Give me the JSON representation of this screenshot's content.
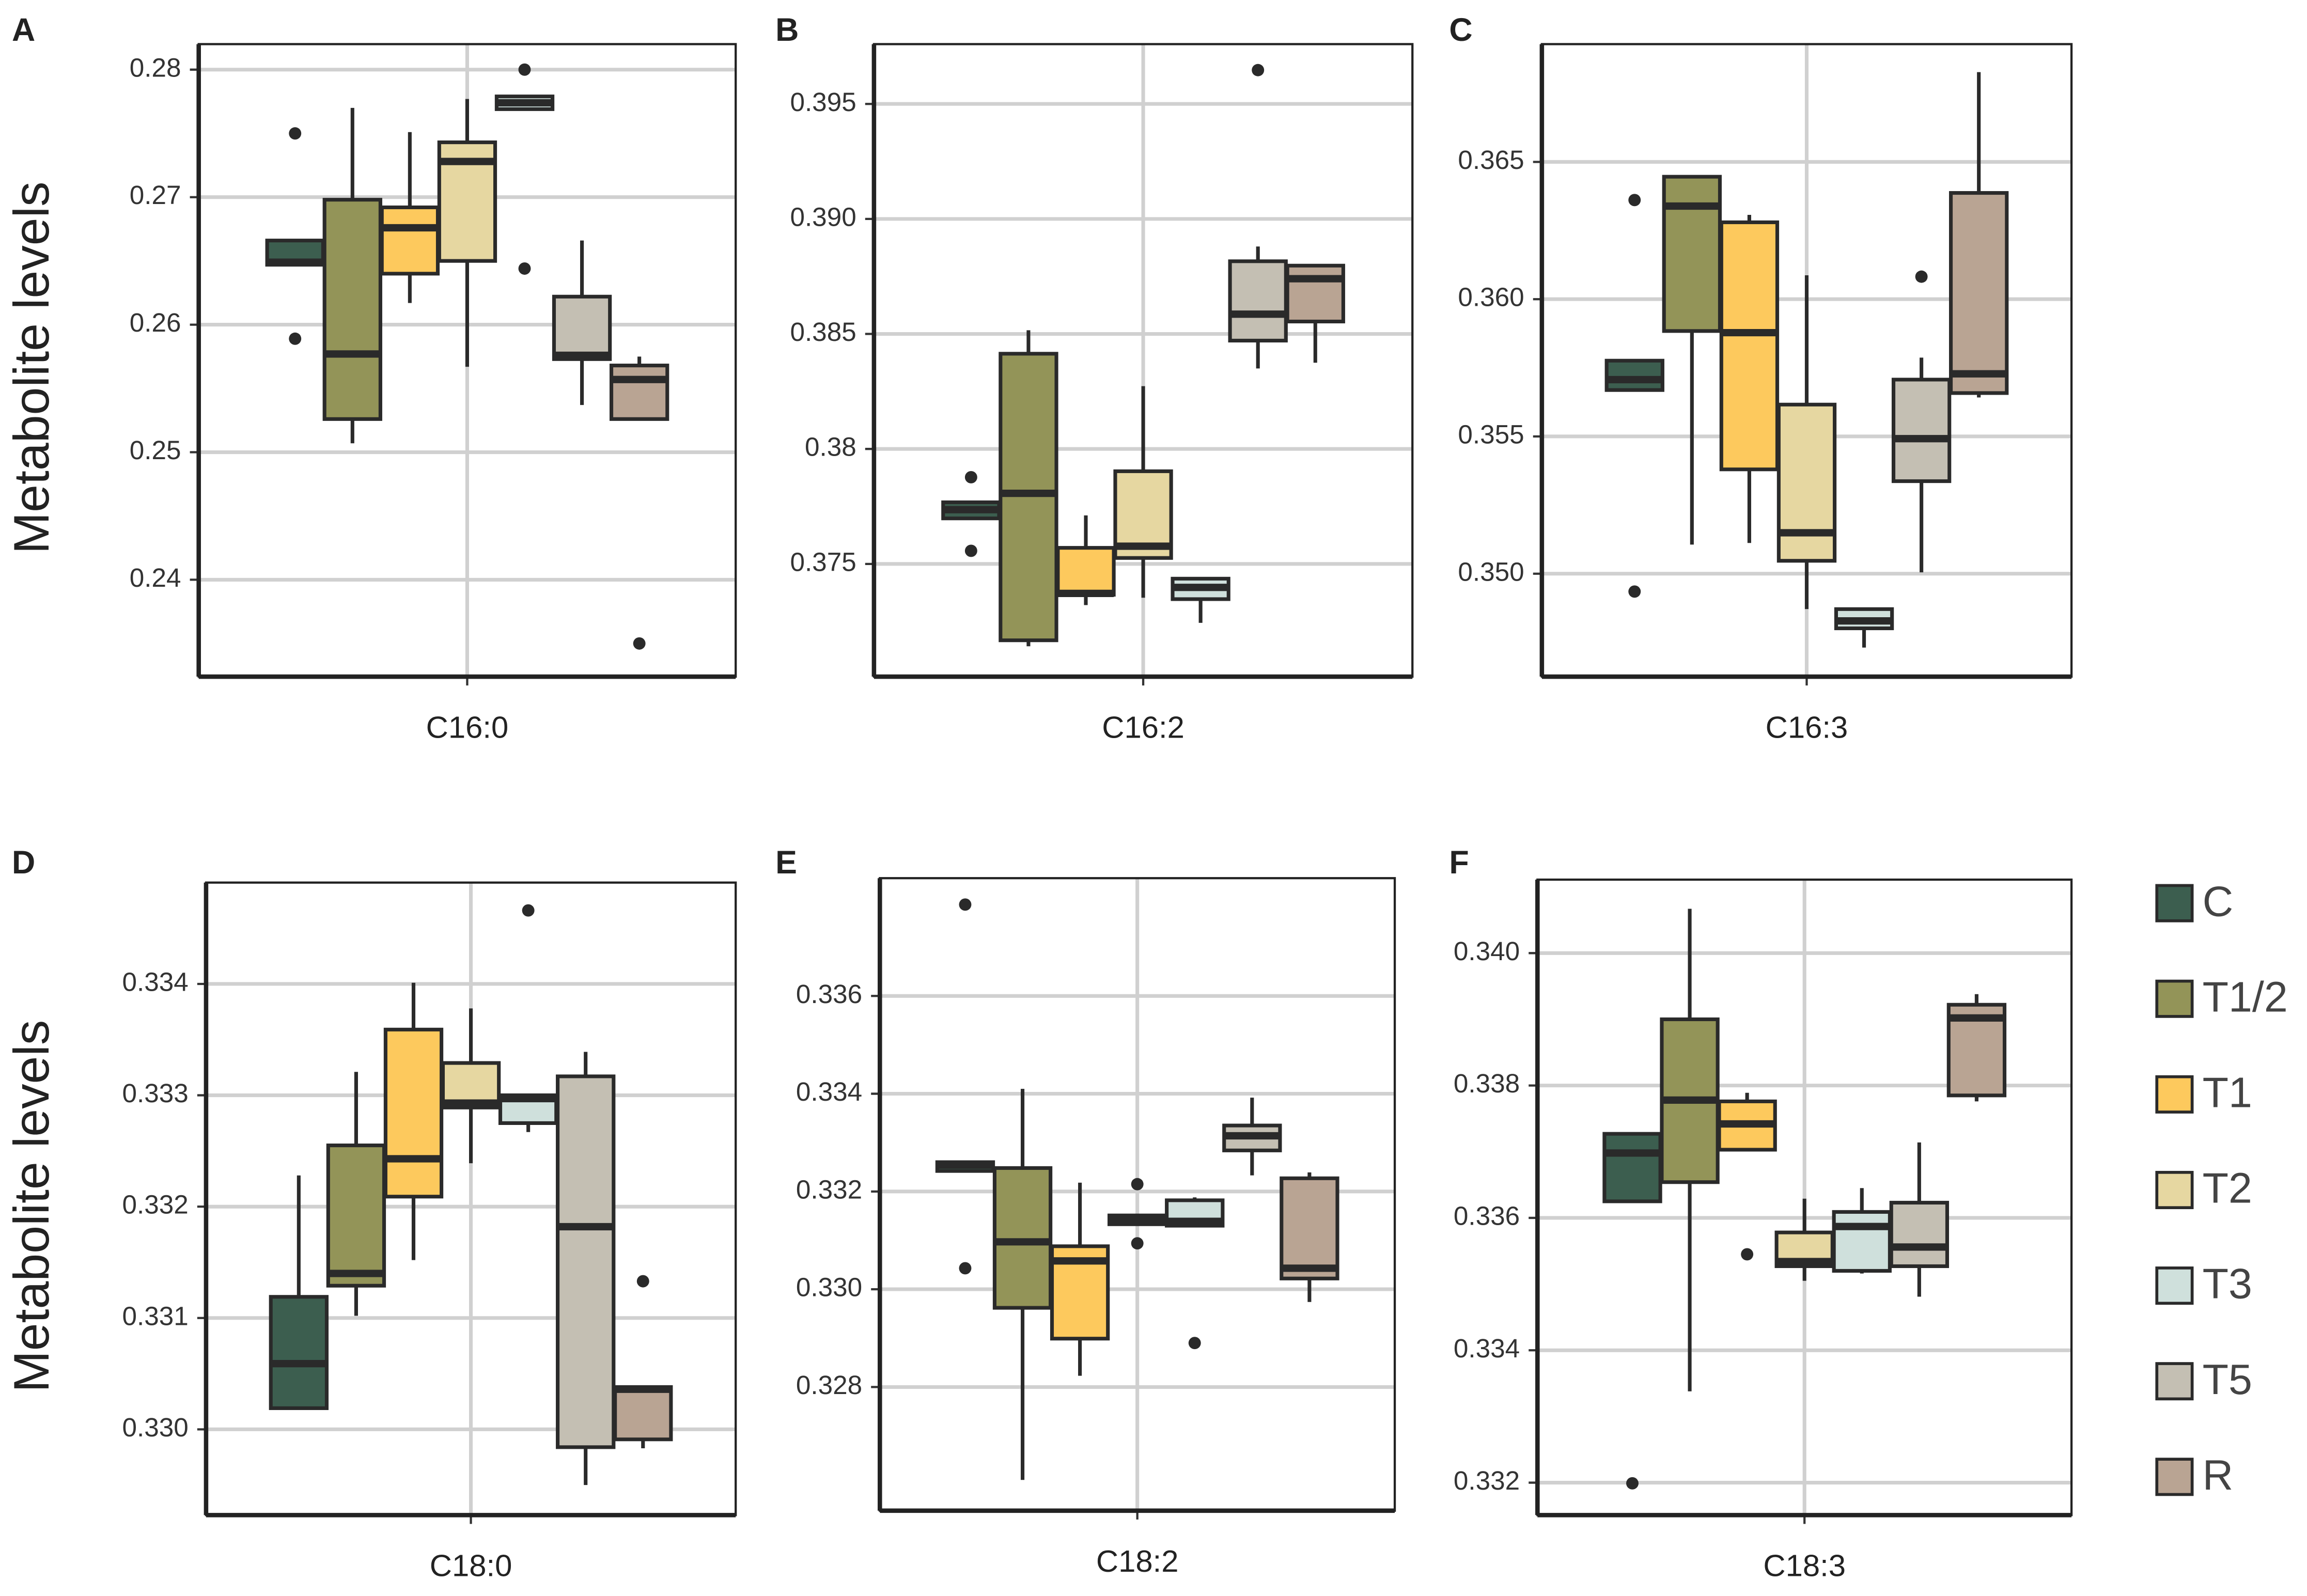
{
  "chart_data": [
    {
      "type": "box",
      "panel": "A",
      "ylabel": "Metabolite levels",
      "xlabel": "C16:0",
      "ylim": [
        0.2324,
        0.282
      ],
      "yticks": [
        0.24,
        0.25,
        0.26,
        0.27,
        0.28
      ],
      "grid": true,
      "boxes": [
        {
          "low": 0.2647,
          "q1": 0.2647,
          "median": 0.2649,
          "q3": 0.2666,
          "high": 0.2666,
          "outliers": [
            0.275,
            0.2589
          ]
        },
        {
          "low": 0.2507,
          "q1": 0.2526,
          "median": 0.2577,
          "q3": 0.2698,
          "high": 0.277
        },
        {
          "low": 0.2617,
          "q1": 0.264,
          "median": 0.2676,
          "q3": 0.2692,
          "high": 0.2751
        },
        {
          "low": 0.2567,
          "q1": 0.265,
          "median": 0.2728,
          "q3": 0.2743,
          "high": 0.2777
        },
        {
          "low": 0.2769,
          "q1": 0.2769,
          "median": 0.2774,
          "q3": 0.2779,
          "high": 0.2779,
          "outliers": [
            0.28,
            0.2644
          ]
        },
        {
          "low": 0.2537,
          "q1": 0.2573,
          "median": 0.2576,
          "q3": 0.2622,
          "high": 0.2666
        },
        {
          "low": 0.2526,
          "q1": 0.2526,
          "median": 0.2557,
          "q3": 0.2568,
          "high": 0.2575,
          "outliers": [
            0.235
          ]
        }
      ]
    },
    {
      "type": "box",
      "panel": "B",
      "xlabel": "C16:2",
      "ylim": [
        0.3701,
        0.3976
      ],
      "yticks": [
        0.375,
        0.38,
        0.385,
        {
          "value": 0.39,
          "label": "0.390"
        },
        0.395
      ],
      "grid": true,
      "boxes": [
        {
          "low": 0.37698,
          "q1": 0.37698,
          "median": 0.37736,
          "q3": 0.37768,
          "high": 0.37768,
          "outliers": [
            0.37877,
            0.37557
          ]
        },
        {
          "low": 0.37142,
          "q1": 0.37168,
          "median": 0.37807,
          "q3": 0.38414,
          "high": 0.38516
        },
        {
          "low": 0.37321,
          "q1": 0.37366,
          "median": 0.37372,
          "q3": 0.3757,
          "high": 0.37711
        },
        {
          "low": 0.37353,
          "q1": 0.37526,
          "median": 0.37577,
          "q3": 0.37903,
          "high": 0.38273
        },
        {
          "low": 0.37244,
          "q1": 0.37347,
          "median": 0.37398,
          "q3": 0.37436,
          "high": 0.37436
        },
        {
          "low": 0.3835,
          "q1": 0.38471,
          "median": 0.38586,
          "q3": 0.38816,
          "high": 0.3888,
          "outliers": [
            0.39647
          ]
        },
        {
          "low": 0.38375,
          "q1": 0.38554,
          "median": 0.3874,
          "q3": 0.38797,
          "high": 0.38797
        }
      ]
    },
    {
      "type": "box",
      "panel": "C",
      "xlabel": "C16:3",
      "ylim": [
        0.34625,
        0.36929
      ],
      "yticks": [
        {
          "value": 0.35,
          "label": "0.350"
        },
        0.355,
        {
          "value": 0.36,
          "label": "0.360"
        },
        0.365
      ],
      "grid": true,
      "boxes": [
        {
          "low": 0.35669,
          "q1": 0.35669,
          "median": 0.35707,
          "q3": 0.35776,
          "high": 0.35776,
          "outliers": [
            0.36361,
            0.34935
          ]
        },
        {
          "low": 0.35106,
          "q1": 0.35884,
          "median": 0.36339,
          "q3": 0.36446,
          "high": 0.36446
        },
        {
          "low": 0.35112,
          "q1": 0.3538,
          "median": 0.35878,
          "q3": 0.3628,
          "high": 0.36307
        },
        {
          "low": 0.34871,
          "q1": 0.35047,
          "median": 0.35149,
          "q3": 0.35616,
          "high": 0.36087
        },
        {
          "low": 0.34731,
          "q1": 0.34801,
          "median": 0.34828,
          "q3": 0.34871,
          "high": 0.34871
        },
        {
          "low": 0.35005,
          "q1": 0.35337,
          "median": 0.35492,
          "q3": 0.35707,
          "high": 0.35787,
          "outliers": [
            0.36082
          ]
        },
        {
          "low": 0.35642,
          "q1": 0.35658,
          "median": 0.35728,
          "q3": 0.36387,
          "high": 0.36827
        }
      ]
    },
    {
      "type": "box",
      "panel": "D",
      "ylabel": "Metabolite levels",
      "xlabel": "C18:0",
      "ylim": [
        0.32923,
        0.33491
      ],
      "yticks": [
        {
          "value": 0.33,
          "label": "0.330"
        },
        0.331,
        0.332,
        0.333,
        0.334
      ],
      "grid": true,
      "boxes": [
        {
          "low": 0.33019,
          "q1": 0.33019,
          "median": 0.33059,
          "q3": 0.33119,
          "high": 0.33228
        },
        {
          "low": 0.33102,
          "q1": 0.33129,
          "median": 0.3314,
          "q3": 0.33255,
          "high": 0.33321
        },
        {
          "low": 0.33152,
          "q1": 0.33209,
          "median": 0.33243,
          "q3": 0.33359,
          "high": 0.33401
        },
        {
          "low": 0.33239,
          "q1": 0.33289,
          "median": 0.33293,
          "q3": 0.33329,
          "high": 0.33378
        },
        {
          "low": 0.33267,
          "q1": 0.33275,
          "median": 0.33297,
          "q3": 0.333,
          "high": 0.333,
          "outliers": [
            0.33466
          ]
        },
        {
          "low": 0.3295,
          "q1": 0.32984,
          "median": 0.33182,
          "q3": 0.33317,
          "high": 0.33339
        },
        {
          "low": 0.32983,
          "q1": 0.32991,
          "median": 0.33036,
          "q3": 0.33038,
          "high": 0.33038,
          "outliers": [
            0.33133
          ]
        }
      ]
    },
    {
      "type": "box",
      "panel": "E",
      "xlabel": "C18:2",
      "ylim": [
        0.32547,
        0.33841
      ],
      "yticks": [
        0.328,
        {
          "value": 0.33,
          "label": "0.330"
        },
        0.332,
        0.334,
        0.336
      ],
      "grid": true,
      "boxes": [
        {
          "low": 0.33242,
          "q1": 0.33242,
          "median": 0.33254,
          "q3": 0.3326,
          "high": 0.3326,
          "outliers": [
            0.33787,
            0.33043
          ]
        },
        {
          "low": 0.3261,
          "q1": 0.32962,
          "median": 0.33097,
          "q3": 0.33248,
          "high": 0.3341
        },
        {
          "low": 0.32823,
          "q1": 0.32899,
          "median": 0.33058,
          "q3": 0.33088,
          "high": 0.33218
        },
        {
          "low": 0.33133,
          "q1": 0.33133,
          "median": 0.33142,
          "q3": 0.33151,
          "high": 0.33151,
          "outliers": [
            0.33215,
            0.33094
          ]
        },
        {
          "low": 0.3313,
          "q1": 0.3313,
          "median": 0.33139,
          "q3": 0.33182,
          "high": 0.33188,
          "outliers": [
            0.3289
          ]
        },
        {
          "low": 0.33233,
          "q1": 0.33284,
          "median": 0.33314,
          "q3": 0.33335,
          "high": 0.33392
        },
        {
          "low": 0.32974,
          "q1": 0.33022,
          "median": 0.33043,
          "q3": 0.33227,
          "high": 0.33239
        }
      ]
    },
    {
      "type": "box",
      "panel": "F",
      "xlabel": "C18:3",
      "ylim": [
        0.33151,
        0.34111
      ],
      "yticks": [
        0.332,
        0.334,
        0.336,
        0.338,
        {
          "value": 0.34,
          "label": "0.340"
        }
      ],
      "grid": true,
      "boxes": [
        {
          "low": 0.33625,
          "q1": 0.33625,
          "median": 0.33698,
          "q3": 0.33727,
          "high": 0.33727,
          "outliers": [
            0.33199
          ]
        },
        {
          "low": 0.33338,
          "q1": 0.33654,
          "median": 0.33778,
          "q3": 0.339,
          "high": 0.34067
        },
        {
          "low": 0.33703,
          "q1": 0.33703,
          "median": 0.33742,
          "q3": 0.33776,
          "high": 0.33789,
          "outliers": [
            0.33545
          ]
        },
        {
          "low": 0.33505,
          "q1": 0.33527,
          "median": 0.33534,
          "q3": 0.33578,
          "high": 0.33629
        },
        {
          "low": 0.33516,
          "q1": 0.3352,
          "median": 0.33587,
          "q3": 0.33609,
          "high": 0.33645
        },
        {
          "low": 0.33481,
          "q1": 0.33527,
          "median": 0.33556,
          "q3": 0.33623,
          "high": 0.33714
        },
        {
          "low": 0.33776,
          "q1": 0.33785,
          "median": 0.33902,
          "q3": 0.33922,
          "high": 0.33938
        }
      ]
    }
  ],
  "legend": {
    "items": [
      {
        "name": "C",
        "color": "#3c5e4f"
      },
      {
        "name": "T1/2",
        "color": "#939458"
      },
      {
        "name": "T1",
        "color": "#fdc95d"
      },
      {
        "name": "T2",
        "color": "#e6d7a1"
      },
      {
        "name": "T3",
        "color": "#cfe0dc"
      },
      {
        "name": "T5",
        "color": "#c4bfb3"
      },
      {
        "name": "R",
        "color": "#b9a493"
      }
    ]
  }
}
